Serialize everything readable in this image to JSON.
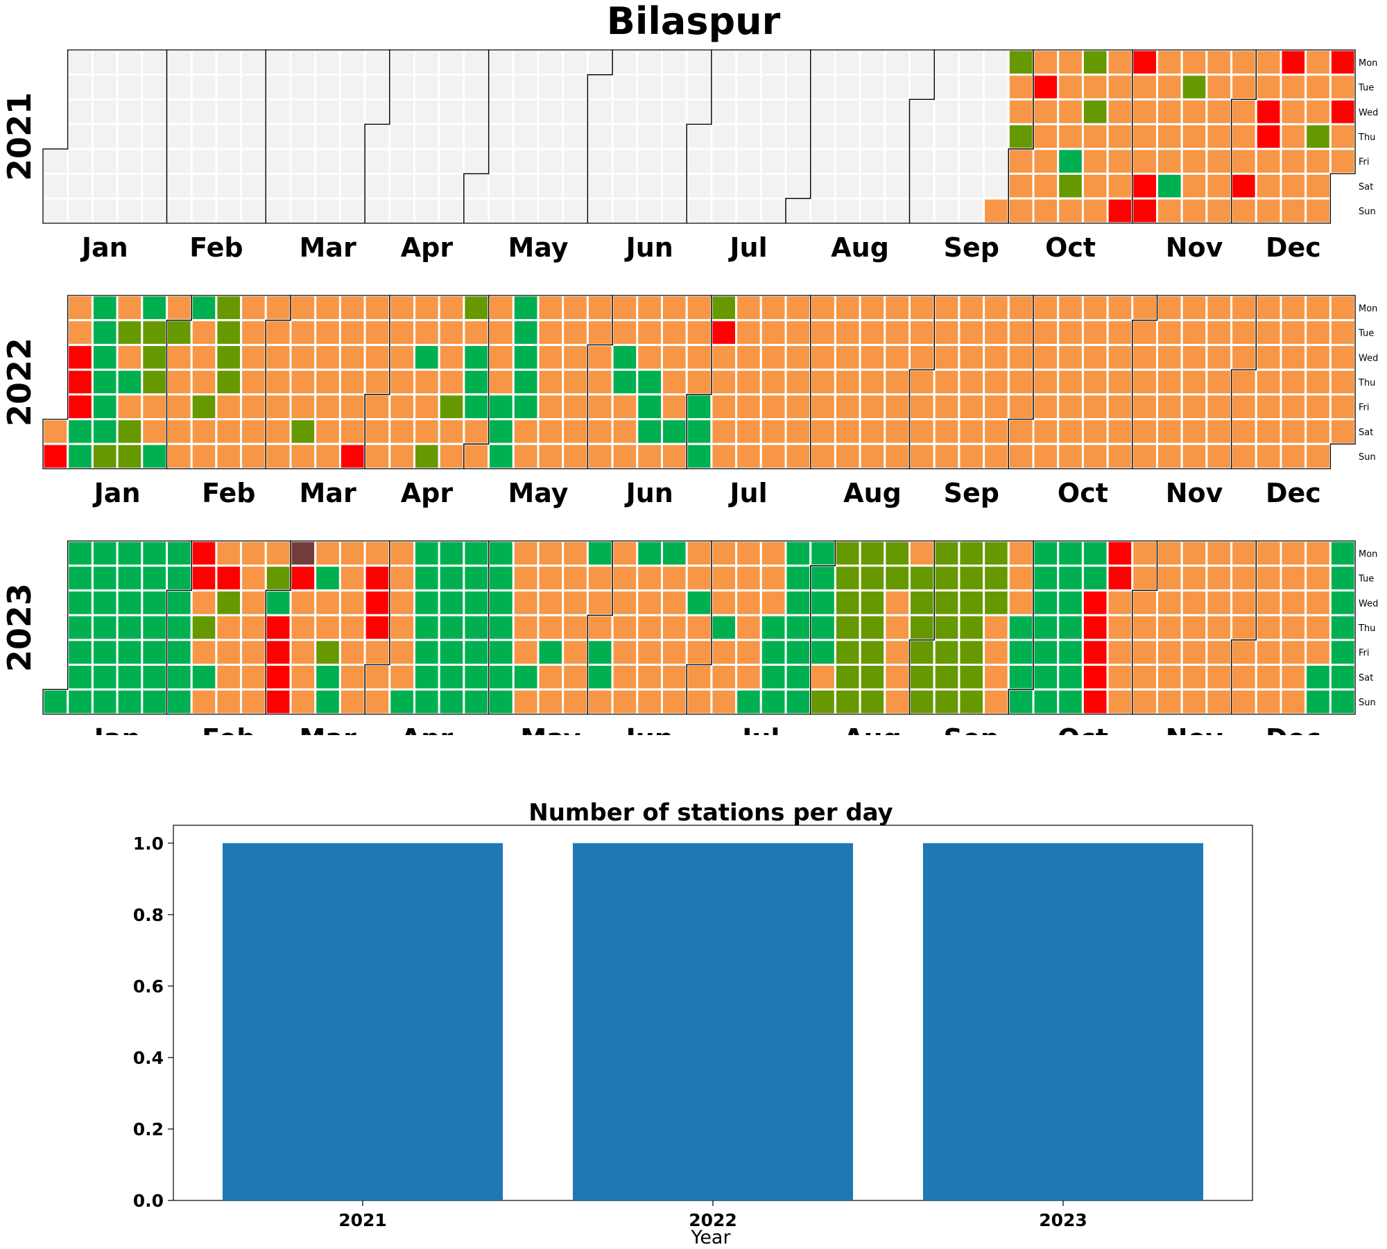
{
  "title": "Bilaspur",
  "colors": {
    "empty": "#f2f2f2",
    "good": "#00b050",
    "satisfactory": "#669900",
    "moderate": "#f79646",
    "poor": "#ff0000",
    "very_poor": "#733c3c",
    "bar": "#1f77b4"
  },
  "calendar": {
    "months": [
      "Jan",
      "Feb",
      "Mar",
      "Apr",
      "May",
      "Jun",
      "Jul",
      "Aug",
      "Sep",
      "Oct",
      "Nov",
      "Dec"
    ],
    "weekdays": [
      "Mon",
      "Tue",
      "Wed",
      "Thu",
      "Fri",
      "Sat",
      "Sun"
    ],
    "years": [
      {
        "year": "2021",
        "first_weekday": 4,
        "data_start_doy": 268,
        "cells": [
          "00000000000000000000000000000000000000000000000000000000000000000000000000000000000000000000000000000000000000000000000000000000000000000000000000000000000000000000000000000000000000000000000000000000000000000000000000000000000000000000000000000000000000000000000",
          "MSMMSMMMMPMMMMMMMMMGSMSMSMMMMMMMMMMPPMMMMPPMMMMMGMMSMMMMMMMMMMMMMMMMMPMMMPPMMMPMMMMMMMMMSMMMPMPMMMGPPPMMM"
        ]
      },
      {
        "year": "2022",
        "first_weekday": 5,
        "cells": [
          "MPMMPPPGGGGGGGGSMSMGMSSGSSSMMGMSMMMMMGMMMSMMSSSSMMMMMMMMMMMMMMMMMMMMMMSMMMMMMMMMMMMMMPMMMMMMMMMMMMMMMMGMMMSMMMMSMMSMGGGMMMMMMGGGGGGGGMMMMMMMMMMMMMMMMMMMMMMMMMGGMMMMMMGGGMMMMMMGMMMMMGGGSPMMMMMMMMMMMMMMMMMMMMMMMMMMMMMMMMMMMMMMMMMMMMMMMMMMMMMMMMMMMMMMMMMMMMMMMMMMMMMMMMMMMMMMMMMMMMMMMMMMMMMMMMMMMMMMMMMMMMMMMMMMMMMMMMMMMMMMMMMMMMMMMMMMMMMMMMMMMMMMMMMMMMMMMMMMMMMMMMMMMMMMMMMMMMMMMMMMMMMMMMMMMMMMMMMMMMMMMMMMMMMMMMMMMMMMMMMM"
        ]
      },
      {
        "year": "2023",
        "first_weekday": 6,
        "cells": [
          "GGGGGGGGGGGGGGGGGGGGGGGGGGGGGGGGGGGGPPMSMGMMPSMMMMMMMMMMMMSGPPPPVPMMMMMMGMMSGGMMMMMMMMPPPMMMMMMMMMGGGGGGGGGGGGGGGGGGGGGGGGGGGGGMMMMMGMMMMMGMMMMMMMMMGMMMGGMMMMMMMMGMMMMMMGMMMMMMMMGMMMMMMMGMMMMMMMMMGMMMGGGGGGGGGGGGGGGGMSSSSSSSSSSSSSSSSSMMMMMMSSSSSSSSSSSSSSSSSSSSSSSMMMMMMMGGGGGGGGGGGGGGGGGGGGPPPPPPPMMMMMMMMMMMMMMMMMMMMMMMMMMMMMMMMMMMMMMMMMMMMMMMMMMMMMMMMMMMGGGGGGGGGGGGGGGGGGGGGGGGGGGGGGGGGGGGGGGGGGGGGGGGGGGGGGGGGGGGGGGGGGGGGGGGGGG"
        ]
      }
    ]
  },
  "chart_data": {
    "type": "bar",
    "title": "Number of stations per day",
    "xlabel": "Year",
    "ylabel": "",
    "categories": [
      "2021",
      "2022",
      "2023"
    ],
    "values": [
      1,
      1,
      1
    ],
    "ylim": [
      0,
      1.05
    ],
    "yticks": [
      "0.0",
      "0.2",
      "0.4",
      "0.6",
      "0.8",
      "1.0"
    ],
    "grid": false
  }
}
